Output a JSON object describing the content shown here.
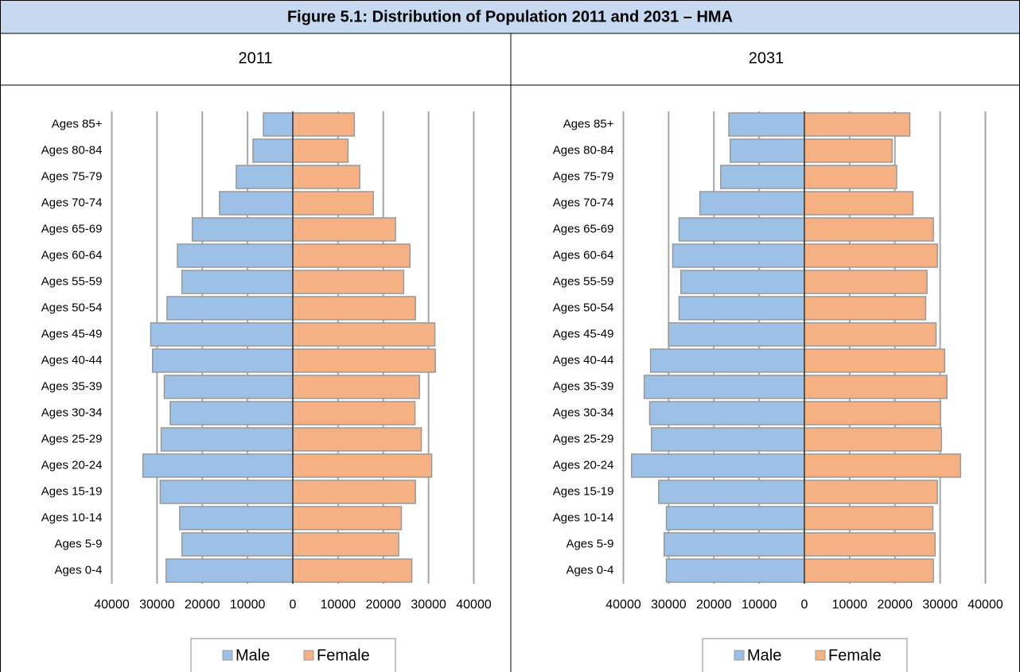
{
  "title": "Figure 5.1: Distribution of Population 2011 and 2031 – HMA",
  "chart_data": [
    {
      "type": "pyramid",
      "title": "2011",
      "categories": [
        "Ages 85+",
        "Ages 80-84",
        "Ages 75-79",
        "Ages 70-74",
        "Ages 65-69",
        "Ages 60-64",
        "Ages 55-59",
        "Ages 50-54",
        "Ages 45-49",
        "Ages 40-44",
        "Ages 35-39",
        "Ages 30-34",
        "Ages 25-29",
        "Ages 20-24",
        "Ages 15-19",
        "Ages 10-14",
        "Ages 5-9",
        "Ages 0-4"
      ],
      "series": [
        {
          "name": "Male",
          "color": "#9dc0e6",
          "values": [
            -6500,
            -8800,
            -12500,
            -16200,
            -22200,
            -25500,
            -24500,
            -27800,
            -31400,
            -31000,
            -28400,
            -27100,
            -29100,
            -33100,
            -29300,
            -25000,
            -24500,
            -28000
          ]
        },
        {
          "name": "Female",
          "color": "#f5b184",
          "values": [
            13600,
            12200,
            14800,
            17800,
            22700,
            25900,
            24500,
            27100,
            31400,
            31500,
            28000,
            27000,
            28400,
            30700,
            27100,
            24000,
            23400,
            26300
          ]
        }
      ],
      "xlim": [
        -40000,
        40000
      ],
      "xticks": [
        {
          "value": -40000,
          "label": "40000"
        },
        {
          "value": -30000,
          "label": "30000"
        },
        {
          "value": -20000,
          "label": "20000"
        },
        {
          "value": -10000,
          "label": "10000"
        },
        0,
        10000,
        20000,
        30000,
        40000
      ],
      "grid": true,
      "legend": "bottom"
    },
    {
      "type": "pyramid",
      "title": "2031",
      "categories": [
        "Ages 85+",
        "Ages 80-84",
        "Ages 75-79",
        "Ages 70-74",
        "Ages 65-69",
        "Ages 60-64",
        "Ages 55-59",
        "Ages 50-54",
        "Ages 45-49",
        "Ages 40-44",
        "Ages 35-39",
        "Ages 30-34",
        "Ages 25-29",
        "Ages 20-24",
        "Ages 15-19",
        "Ages 10-14",
        "Ages 5-9",
        "Ages 0-4"
      ],
      "series": [
        {
          "name": "Male",
          "color": "#9dc0e6",
          "values": [
            -16700,
            -16400,
            -18500,
            -23100,
            -27700,
            -29100,
            -27300,
            -27700,
            -30000,
            -34000,
            -35400,
            -34200,
            -33800,
            -38200,
            -32200,
            -30500,
            -31000,
            -30500
          ]
        },
        {
          "name": "Female",
          "color": "#f5b184",
          "values": [
            23300,
            19400,
            20400,
            24000,
            28500,
            29400,
            27100,
            26800,
            29100,
            31000,
            31500,
            30100,
            30300,
            34500,
            29400,
            28400,
            28900,
            28500
          ]
        }
      ],
      "xlim": [
        -40000,
        40000
      ],
      "xticks": [
        {
          "value": -40000,
          "label": "40000"
        },
        {
          "value": -30000,
          "label": "30000"
        },
        {
          "value": -20000,
          "label": "20000"
        },
        {
          "value": -10000,
          "label": "10000"
        },
        0,
        10000,
        20000,
        30000,
        40000
      ],
      "grid": true,
      "legend": "bottom"
    }
  ]
}
